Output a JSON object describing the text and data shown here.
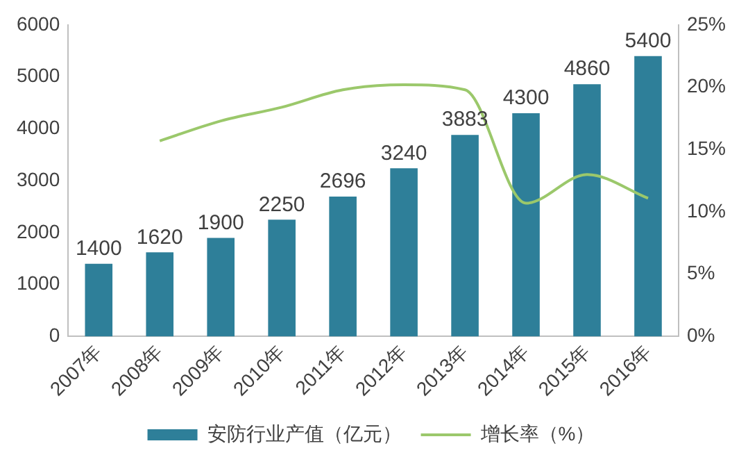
{
  "chart_data": {
    "type": "bar",
    "categories": [
      "2007年",
      "2008年",
      "2009年",
      "2010年",
      "2011年",
      "2012年",
      "2013年",
      "2014年",
      "2015年",
      "2016年"
    ],
    "series": [
      {
        "name": "安防行业产值（亿元）",
        "color": "#2e7f99",
        "values": [
          1400,
          1620,
          1900,
          2250,
          2696,
          3240,
          3883,
          4300,
          4860,
          5400
        ],
        "value_labels": [
          "1400",
          "1620",
          "1900",
          "2250",
          "2696",
          "3240",
          "3883",
          "4300",
          "4860",
          "5400"
        ]
      },
      {
        "name": "增长率（%）",
        "type": "line",
        "axis": "y2",
        "color": "#9bc86b",
        "values": [
          null,
          15.7,
          17.3,
          18.4,
          19.8,
          20.2,
          19.8,
          10.7,
          13.0,
          11.1
        ]
      }
    ],
    "ylim": [
      0,
      6000
    ],
    "yticks": [
      0,
      1000,
      2000,
      3000,
      4000,
      5000,
      6000
    ],
    "y2lim": [
      0,
      25
    ],
    "y2ticks": [
      {
        "value": 0,
        "label": "0%"
      },
      {
        "value": 5,
        "label": "5%"
      },
      {
        "value": 10,
        "label": "10%"
      },
      {
        "value": 15,
        "label": "15%"
      },
      {
        "value": 20,
        "label": "20%"
      },
      {
        "value": 25,
        "label": "25%"
      }
    ],
    "grid": false,
    "legend": "bottom",
    "marker": "none"
  }
}
